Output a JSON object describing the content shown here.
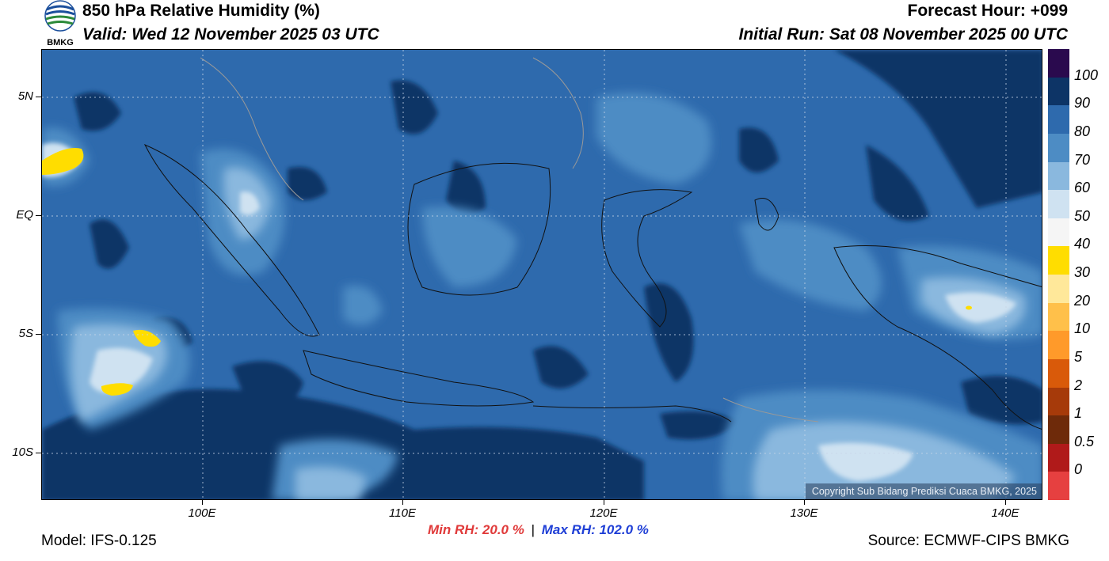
{
  "header": {
    "logo_text": "BMKG",
    "title": "850 hPa Relative Humidity (%)",
    "valid": "Valid: Wed 12 November 2025 03 UTC",
    "forecast_hour": "Forecast Hour: +099",
    "initial_run": "Initial Run: Sat 08 November 2025 00 UTC"
  },
  "map": {
    "copyright": "Copyright Sub Bidang Prediksi Cuaca BMKG, 2025",
    "lat_labels": [
      "5N",
      "EQ",
      "5S",
      "10S"
    ],
    "lon_labels": [
      "100E",
      "110E",
      "120E",
      "130E",
      "140E"
    ]
  },
  "colorbar": {
    "labels": [
      "100",
      "90",
      "80",
      "70",
      "60",
      "50",
      "40",
      "30",
      "20",
      "10",
      "5",
      "2",
      "1",
      "0.5",
      "0"
    ],
    "colors": [
      "#2a0a4e",
      "#0d3466",
      "#2e6aad",
      "#4d8cc4",
      "#8ab8de",
      "#cfe2f1",
      "#f5f5f5",
      "#ffdd00",
      "#ffe89a",
      "#ffc04a",
      "#ff9a2a",
      "#d95a0a",
      "#a63a0a",
      "#6e2a0a",
      "#b01a1a",
      "#e64040"
    ]
  },
  "footer": {
    "min_rh": "Min RH:  20.0 %",
    "separator": "|",
    "max_rh": "Max RH: 102.0 %",
    "model": "Model: IFS-0.125",
    "source": "Source: ECMWF-CIPS BMKG"
  }
}
